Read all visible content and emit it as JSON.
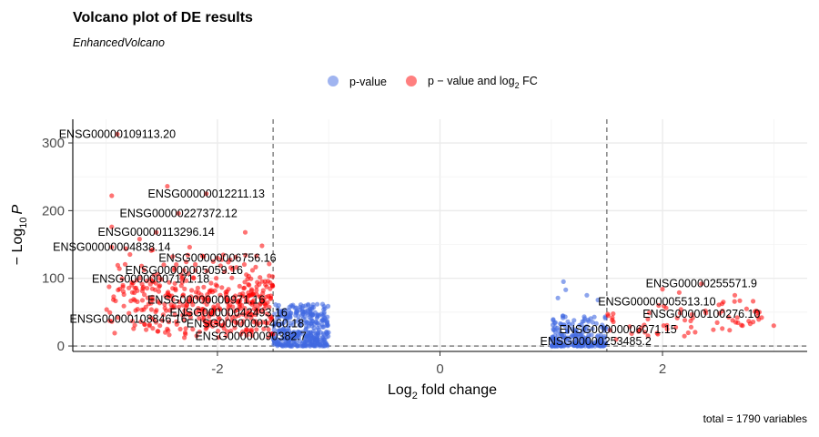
{
  "chart_data": {
    "type": "scatter",
    "title": "Volcano plot of DE results",
    "subtitle": "EnhancedVolcano",
    "xlabel": "Log",
    "xlabel_sub": "2",
    "xlabel_rest": " fold change",
    "ylabel_prefix": "− Log",
    "ylabel_sub": "10",
    "ylabel_var": "P",
    "caption": "total = 1790 variables",
    "xlim": [
      -3.3,
      3.3
    ],
    "ylim": [
      -8,
      335
    ],
    "x_ticks": [
      -2,
      0,
      2
    ],
    "x_tick_labels": [
      "-2",
      "0",
      "2"
    ],
    "y_ticks": [
      0,
      100,
      200,
      300
    ],
    "y_tick_labels": [
      "0",
      "100",
      "200",
      "300"
    ],
    "grid": true,
    "legend_position": "top",
    "fc_cutoff": 1.5,
    "p_cutoff_neglog10": 0,
    "colors": {
      "pvalue": "#4169e1",
      "both": "#ff0000"
    },
    "legend": [
      {
        "key": "pvalue",
        "label": "p-value"
      },
      {
        "key": "both",
        "label": "p − value and log",
        "sub": "2",
        "rest": " FC"
      }
    ],
    "series": [
      {
        "name": "p-value",
        "key": "pvalue",
        "points": []
      },
      {
        "name": "p − value and log2 FC",
        "key": "both",
        "points": []
      }
    ],
    "labels": [
      {
        "text": "ENSG00000109113.20",
        "x": -2.9,
        "y": 313
      },
      {
        "text": "ENSG00000012211.13",
        "x": -2.1,
        "y": 225
      },
      {
        "text": "ENSG00000227372.12",
        "x": -2.35,
        "y": 196
      },
      {
        "text": "ENSG00000113296.14",
        "x": -2.55,
        "y": 168
      },
      {
        "text": "ENSG00000004838.14",
        "x": -2.95,
        "y": 146
      },
      {
        "text": "ENSG00000006756.16",
        "x": -2.0,
        "y": 130
      },
      {
        "text": "ENSG00000005059.16",
        "x": -2.3,
        "y": 112
      },
      {
        "text": "ENSG00000007171.18",
        "x": -2.6,
        "y": 99
      },
      {
        "text": "ENSG00000000971.16",
        "x": -2.1,
        "y": 68
      },
      {
        "text": "ENSG00000108846.16",
        "x": -2.8,
        "y": 40
      },
      {
        "text": "ENSG00000042493.16",
        "x": -1.9,
        "y": 49
      },
      {
        "text": "ENSG00000001460.18",
        "x": -1.75,
        "y": 33
      },
      {
        "text": "ENSG00000090382.7",
        "x": -1.7,
        "y": 14
      },
      {
        "text": "ENSG00000255571.9",
        "x": 2.35,
        "y": 92
      },
      {
        "text": "ENSG00000005513.10",
        "x": 1.95,
        "y": 65
      },
      {
        "text": "ENSG00000100276.10",
        "x": 2.35,
        "y": 47
      },
      {
        "text": "ENSG00000006071.15",
        "x": 1.6,
        "y": 24
      },
      {
        "text": "ENSG00000253485.2",
        "x": 1.4,
        "y": 7
      }
    ]
  }
}
